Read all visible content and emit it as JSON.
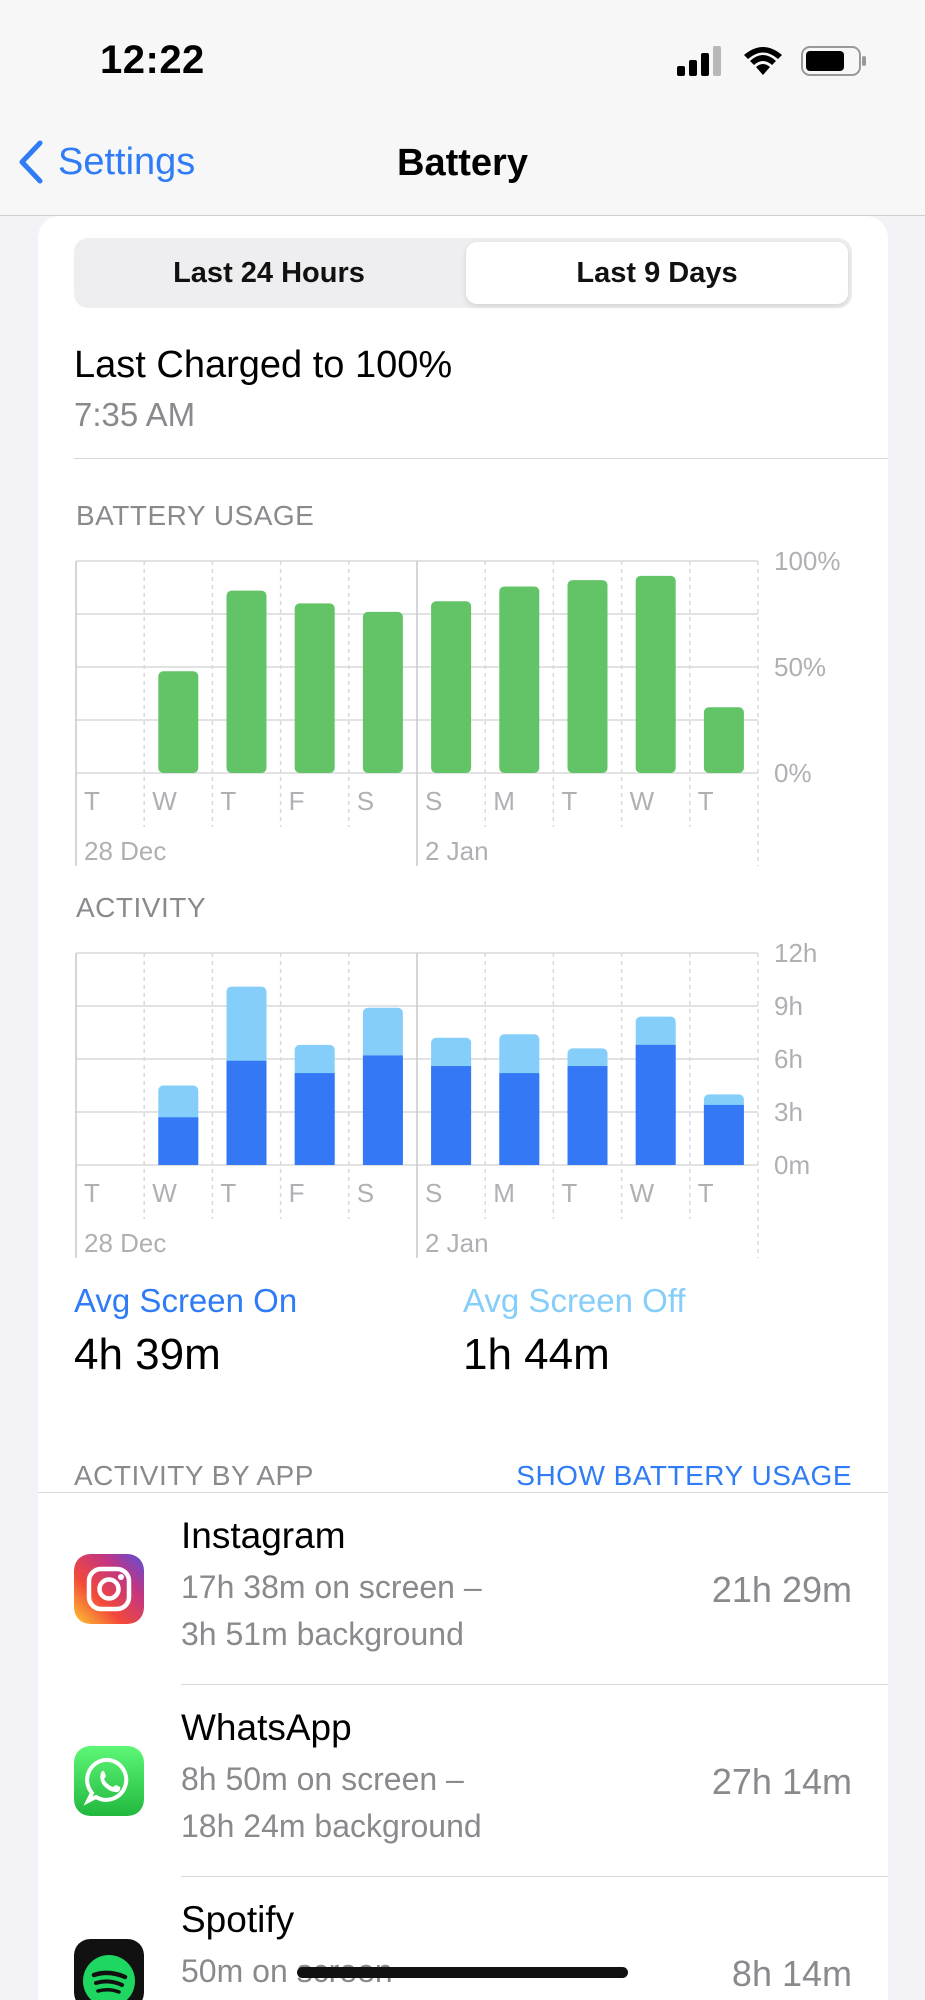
{
  "status_bar": {
    "time": "12:22"
  },
  "nav": {
    "back_label": "Settings",
    "title": "Battery"
  },
  "segmented": {
    "options": [
      "Last 24 Hours",
      "Last 9 Days"
    ],
    "selected": "Last 9 Days"
  },
  "last_charged": {
    "title": "Last Charged to 100%",
    "time": "7:35 AM"
  },
  "colors": {
    "accent": "#2f7cf6",
    "battery_bar": "#62c466",
    "screen_on": "#3478f6",
    "screen_off": "#86cefa"
  },
  "battery_usage": {
    "label": "BATTERY USAGE",
    "y_ticks": [
      "100%",
      "50%",
      "0%"
    ],
    "day_labels": [
      "T",
      "W",
      "T",
      "F",
      "S",
      "S",
      "M",
      "T",
      "W",
      "T"
    ],
    "date_labels": [
      "28 Dec",
      "2 Jan"
    ],
    "chart_data": {
      "type": "bar",
      "categories": [
        "T",
        "W",
        "T",
        "F",
        "S",
        "S",
        "M",
        "T",
        "W",
        "T"
      ],
      "values": [
        0,
        48,
        86,
        80,
        76,
        81,
        88,
        91,
        93,
        31
      ],
      "ylim": [
        0,
        100
      ]
    }
  },
  "activity": {
    "label": "ACTIVITY",
    "y_ticks": [
      "12h",
      "9h",
      "6h",
      "3h",
      "0m"
    ],
    "day_labels": [
      "T",
      "W",
      "T",
      "F",
      "S",
      "S",
      "M",
      "T",
      "W",
      "T"
    ],
    "date_labels": [
      "28 Dec",
      "2 Jan"
    ],
    "chart_data": {
      "type": "bar",
      "categories": [
        "T",
        "W",
        "T",
        "F",
        "S",
        "S",
        "M",
        "T",
        "W",
        "T"
      ],
      "ylim": [
        0,
        12
      ],
      "series": [
        {
          "values": [
            0,
            2.7,
            5.9,
            5.2,
            6.2,
            5.6,
            5.2,
            5.6,
            6.8,
            3.4
          ]
        },
        {
          "values": [
            0,
            1.8,
            4.2,
            1.6,
            2.7,
            1.6,
            2.2,
            1.0,
            1.6,
            0.6
          ]
        }
      ]
    }
  },
  "averages": {
    "screen_on_label": "Avg Screen On",
    "screen_on_value": "4h 39m",
    "screen_off_label": "Avg Screen Off",
    "screen_off_value": "1h 44m"
  },
  "activity_by_app": {
    "label": "ACTIVITY BY APP",
    "link": "SHOW BATTERY USAGE",
    "apps": [
      {
        "name": "Instagram",
        "line1": "17h 38m on screen –",
        "line2": "3h 51m background",
        "total": "21h 29m",
        "icon": "instagram-icon"
      },
      {
        "name": "WhatsApp",
        "line1": "8h 50m on screen –",
        "line2": "18h 24m background",
        "total": "27h 14m",
        "icon": "whatsapp-icon"
      },
      {
        "name": "Spotify",
        "line1": "50m on screen",
        "line2": "",
        "total": "8h 14m",
        "icon": "spotify-icon"
      }
    ]
  }
}
